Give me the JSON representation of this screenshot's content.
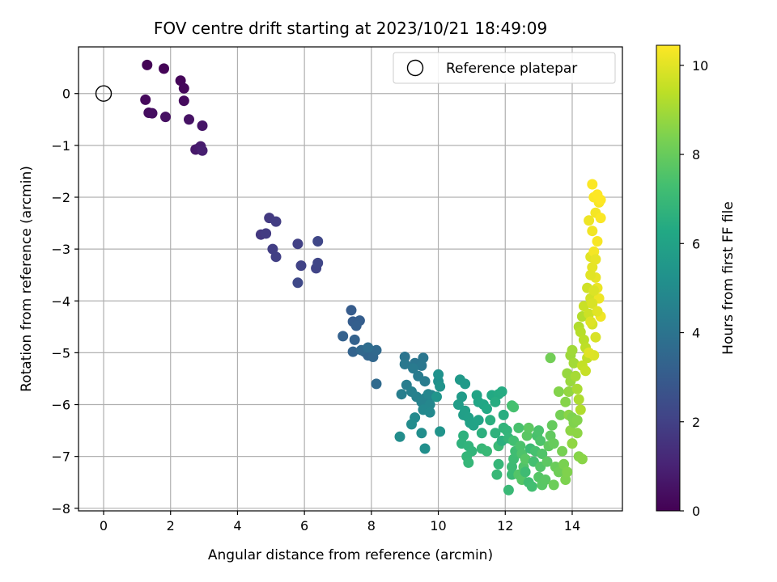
{
  "chart_data": {
    "type": "scatter",
    "title": "FOV centre drift starting at 2023/10/21 18:49:09",
    "xlabel": "Angular distance from reference (arcmin)",
    "ylabel": "Rotation from reference (arcmin)",
    "xlim": [
      -0.75,
      15.5
    ],
    "ylim": [
      -8.05,
      0.9
    ],
    "xticks": [
      0,
      2,
      4,
      6,
      8,
      10,
      12,
      14
    ],
    "yticks": [
      0,
      -1,
      -2,
      -3,
      -4,
      -5,
      -6,
      -7,
      -8
    ],
    "grid": true,
    "legend": {
      "position": "top-right",
      "entries": [
        {
          "label": "Reference platepar",
          "marker": "open-circle"
        }
      ]
    },
    "reference_point": {
      "x": 0,
      "y": 0
    },
    "colorbar": {
      "label": "Hours from first FF file",
      "range": [
        0,
        10.45
      ],
      "ticks": [
        0,
        2,
        4,
        6,
        8,
        10
      ],
      "colormap": "viridis"
    },
    "series": [
      {
        "points": [
          [
            1.3,
            0.55,
            0.05
          ],
          [
            1.8,
            0.48,
            0.1
          ],
          [
            2.3,
            0.25,
            0.15
          ],
          [
            2.4,
            0.1,
            0.2
          ],
          [
            1.25,
            -0.12,
            0.25
          ],
          [
            2.4,
            -0.14,
            0.3
          ],
          [
            1.35,
            -0.37,
            0.35
          ],
          [
            1.45,
            -0.38,
            0.4
          ],
          [
            1.85,
            -0.45,
            0.45
          ],
          [
            2.55,
            -0.5,
            0.5
          ],
          [
            2.95,
            -0.62,
            0.6
          ],
          [
            2.75,
            -1.08,
            0.7
          ],
          [
            2.85,
            -1.05,
            0.75
          ],
          [
            2.9,
            -1.02,
            0.8
          ],
          [
            2.95,
            -1.1,
            0.9
          ],
          [
            4.7,
            -2.72,
            1.7
          ],
          [
            4.95,
            -2.4,
            1.75
          ],
          [
            4.85,
            -2.7,
            1.8
          ],
          [
            5.15,
            -2.47,
            1.85
          ],
          [
            5.05,
            -3.0,
            1.9
          ],
          [
            5.15,
            -3.15,
            1.95
          ],
          [
            5.8,
            -2.9,
            2.0
          ],
          [
            5.9,
            -3.32,
            2.05
          ],
          [
            6.35,
            -3.37,
            2.1
          ],
          [
            6.4,
            -3.27,
            2.15
          ],
          [
            6.4,
            -2.85,
            2.2
          ],
          [
            5.8,
            -3.65,
            2.3
          ],
          [
            7.4,
            -4.18,
            3.0
          ],
          [
            7.45,
            -4.4,
            3.05
          ],
          [
            7.65,
            -4.38,
            3.1
          ],
          [
            7.55,
            -4.48,
            3.15
          ],
          [
            7.15,
            -4.68,
            3.2
          ],
          [
            7.5,
            -4.75,
            3.25
          ],
          [
            7.45,
            -4.98,
            3.3
          ],
          [
            7.8,
            -4.98,
            3.35
          ],
          [
            7.9,
            -5.05,
            3.4
          ],
          [
            8.05,
            -5.08,
            3.45
          ],
          [
            7.7,
            -4.95,
            3.5
          ],
          [
            8.15,
            -4.95,
            3.55
          ],
          [
            8.15,
            -5.6,
            3.6
          ],
          [
            7.9,
            -4.9,
            3.7
          ],
          [
            9.0,
            -5.08,
            4.0
          ],
          [
            9.3,
            -5.2,
            4.05
          ],
          [
            9.55,
            -5.1,
            4.1
          ],
          [
            9.5,
            -5.25,
            4.15
          ],
          [
            9.0,
            -5.22,
            4.2
          ],
          [
            9.25,
            -5.3,
            4.25
          ],
          [
            9.4,
            -5.45,
            4.3
          ],
          [
            9.6,
            -5.55,
            4.35
          ],
          [
            9.05,
            -5.62,
            4.4
          ],
          [
            8.9,
            -5.8,
            4.45
          ],
          [
            9.2,
            -5.75,
            4.5
          ],
          [
            9.35,
            -5.85,
            4.55
          ],
          [
            9.6,
            -5.88,
            4.6
          ],
          [
            9.5,
            -5.95,
            4.65
          ],
          [
            9.8,
            -5.82,
            4.7
          ],
          [
            9.7,
            -5.8,
            4.75
          ],
          [
            9.75,
            -6.0,
            4.8
          ],
          [
            9.55,
            -6.1,
            4.85
          ],
          [
            9.75,
            -6.15,
            4.9
          ],
          [
            9.3,
            -6.25,
            4.95
          ],
          [
            9.2,
            -6.38,
            5.0
          ],
          [
            8.85,
            -6.62,
            5.05
          ],
          [
            9.5,
            -6.55,
            5.1
          ],
          [
            9.6,
            -6.85,
            5.15
          ],
          [
            10.0,
            -5.55,
            5.2
          ],
          [
            10.0,
            -5.42,
            5.25
          ],
          [
            10.05,
            -5.65,
            5.3
          ],
          [
            10.05,
            -6.52,
            5.35
          ],
          [
            9.95,
            -5.85,
            5.4
          ],
          [
            10.65,
            -5.52,
            5.6
          ],
          [
            10.8,
            -5.6,
            5.65
          ],
          [
            10.7,
            -5.85,
            5.7
          ],
          [
            10.6,
            -6.0,
            5.75
          ],
          [
            10.75,
            -6.2,
            5.8
          ],
          [
            10.8,
            -6.12,
            5.85
          ],
          [
            10.9,
            -6.25,
            5.9
          ],
          [
            10.95,
            -6.35,
            5.95
          ],
          [
            11.05,
            -6.4,
            6.0
          ],
          [
            11.2,
            -6.3,
            6.05
          ],
          [
            11.15,
            -5.82,
            6.1
          ],
          [
            11.2,
            -5.95,
            6.15
          ],
          [
            11.35,
            -6.0,
            6.2
          ],
          [
            11.45,
            -6.08,
            6.25
          ],
          [
            11.6,
            -5.82,
            6.3
          ],
          [
            11.8,
            -5.8,
            6.35
          ],
          [
            11.9,
            -5.75,
            6.4
          ],
          [
            11.7,
            -5.95,
            6.45
          ],
          [
            11.95,
            -6.2,
            6.5
          ],
          [
            11.55,
            -6.3,
            6.55
          ],
          [
            11.3,
            -6.55,
            6.6
          ],
          [
            10.75,
            -6.6,
            6.65
          ],
          [
            10.7,
            -6.75,
            6.7
          ],
          [
            10.9,
            -6.8,
            6.75
          ],
          [
            11.0,
            -6.9,
            6.8
          ],
          [
            10.85,
            -7.0,
            6.85
          ],
          [
            10.9,
            -7.12,
            6.9
          ],
          [
            11.3,
            -6.85,
            6.95
          ],
          [
            11.45,
            -6.9,
            7.0
          ],
          [
            11.8,
            -6.8,
            7.05
          ],
          [
            11.9,
            -6.7,
            6.6
          ],
          [
            11.7,
            -6.55,
            6.7
          ],
          [
            11.95,
            -6.45,
            6.75
          ],
          [
            12.05,
            -6.5,
            6.8
          ],
          [
            12.1,
            -6.65,
            6.85
          ],
          [
            11.8,
            -7.15,
            6.9
          ],
          [
            11.75,
            -7.35,
            6.95
          ],
          [
            12.1,
            -7.65,
            7.0
          ],
          [
            12.2,
            -7.35,
            7.05
          ],
          [
            12.2,
            -7.2,
            7.1
          ],
          [
            12.25,
            -7.05,
            7.15
          ],
          [
            12.3,
            -6.9,
            7.2
          ],
          [
            12.25,
            -6.7,
            7.25
          ],
          [
            12.2,
            -6.02,
            7.3
          ],
          [
            12.25,
            -6.05,
            7.35
          ],
          [
            12.4,
            -6.45,
            7.4
          ],
          [
            12.45,
            -6.8,
            7.45
          ],
          [
            12.5,
            -6.95,
            7.5
          ],
          [
            12.55,
            -7.2,
            7.55
          ],
          [
            12.4,
            -7.35,
            7.6
          ],
          [
            12.5,
            -7.45,
            7.65
          ],
          [
            12.6,
            -7.05,
            7.7
          ],
          [
            12.65,
            -6.6,
            7.75
          ],
          [
            12.7,
            -6.45,
            7.8
          ],
          [
            12.75,
            -6.85,
            7.1
          ],
          [
            12.6,
            -7.3,
            7.15
          ],
          [
            12.7,
            -7.5,
            7.2
          ],
          [
            12.8,
            -7.58,
            7.25
          ],
          [
            12.85,
            -7.1,
            7.3
          ],
          [
            12.9,
            -6.9,
            7.35
          ],
          [
            12.95,
            -6.6,
            7.4
          ],
          [
            13.0,
            -6.5,
            7.45
          ],
          [
            13.05,
            -6.7,
            7.5
          ],
          [
            13.1,
            -6.95,
            7.55
          ],
          [
            13.05,
            -7.2,
            7.6
          ],
          [
            13.0,
            -7.4,
            7.65
          ],
          [
            13.1,
            -7.55,
            7.7
          ],
          [
            13.2,
            -7.45,
            7.75
          ],
          [
            13.25,
            -7.1,
            7.8
          ],
          [
            13.3,
            -6.8,
            7.85
          ],
          [
            13.35,
            -6.6,
            7.9
          ],
          [
            13.4,
            -6.4,
            7.95
          ],
          [
            13.45,
            -6.75,
            8.0
          ],
          [
            13.5,
            -7.2,
            8.05
          ],
          [
            13.45,
            -7.55,
            8.1
          ],
          [
            13.6,
            -7.3,
            8.15
          ],
          [
            13.35,
            -5.1,
            8.2
          ],
          [
            13.65,
            -6.2,
            8.25
          ],
          [
            13.7,
            -6.9,
            8.3
          ],
          [
            13.75,
            -7.15,
            8.35
          ],
          [
            13.8,
            -7.45,
            8.4
          ],
          [
            13.85,
            -7.3,
            8.45
          ],
          [
            13.6,
            -5.75,
            8.5
          ],
          [
            13.8,
            -5.95,
            8.55
          ],
          [
            13.9,
            -6.2,
            8.6
          ],
          [
            13.95,
            -6.5,
            8.65
          ],
          [
            14.0,
            -6.75,
            8.7
          ],
          [
            13.9,
            -5.75,
            8.75
          ],
          [
            13.85,
            -5.4,
            8.8
          ],
          [
            13.95,
            -5.55,
            8.85
          ],
          [
            13.95,
            -5.05,
            8.9
          ],
          [
            14.0,
            -4.95,
            8.95
          ],
          [
            14.05,
            -5.2,
            9.0
          ],
          [
            14.1,
            -5.45,
            9.05
          ],
          [
            14.15,
            -5.7,
            9.1
          ],
          [
            14.2,
            -5.9,
            9.15
          ],
          [
            14.25,
            -6.1,
            9.2
          ],
          [
            14.0,
            -6.25,
            8.4
          ],
          [
            14.05,
            -6.35,
            8.45
          ],
          [
            14.15,
            -6.3,
            8.5
          ],
          [
            14.2,
            -7.0,
            8.55
          ],
          [
            14.3,
            -7.05,
            8.6
          ],
          [
            14.15,
            -6.55,
            8.65
          ],
          [
            14.2,
            -4.5,
            9.2
          ],
          [
            14.3,
            -4.3,
            9.25
          ],
          [
            14.25,
            -4.6,
            9.3
          ],
          [
            14.35,
            -4.75,
            9.35
          ],
          [
            14.4,
            -4.9,
            9.4
          ],
          [
            14.45,
            -5.1,
            9.45
          ],
          [
            14.3,
            -5.25,
            9.5
          ],
          [
            14.4,
            -5.35,
            9.55
          ],
          [
            14.35,
            -4.1,
            9.6
          ],
          [
            14.5,
            -4.25,
            9.65
          ],
          [
            14.45,
            -3.75,
            9.7
          ],
          [
            14.55,
            -3.95,
            9.75
          ],
          [
            14.6,
            -4.45,
            9.8
          ],
          [
            14.7,
            -4.7,
            9.85
          ],
          [
            14.65,
            -5.05,
            9.9
          ],
          [
            14.5,
            -5.0,
            9.95
          ],
          [
            14.55,
            -3.15,
            10.0
          ],
          [
            14.6,
            -3.35,
            10.05
          ],
          [
            14.7,
            -3.55,
            10.1
          ],
          [
            14.75,
            -3.75,
            10.15
          ],
          [
            14.8,
            -3.95,
            10.2
          ],
          [
            14.85,
            -4.3,
            10.25
          ],
          [
            14.65,
            -3.05,
            10.3
          ],
          [
            14.75,
            -2.85,
            10.35
          ],
          [
            14.5,
            -2.45,
            10.2
          ],
          [
            14.6,
            -2.65,
            10.25
          ],
          [
            14.7,
            -2.3,
            10.3
          ],
          [
            14.8,
            -2.1,
            10.35
          ],
          [
            14.85,
            -2.4,
            10.4
          ],
          [
            14.65,
            -2.0,
            10.4
          ],
          [
            14.6,
            -1.75,
            10.42
          ],
          [
            14.75,
            -1.95,
            10.45
          ],
          [
            14.85,
            -2.05,
            10.45
          ],
          [
            14.7,
            -3.2,
            10.1
          ],
          [
            14.55,
            -3.5,
            10.0
          ],
          [
            14.65,
            -3.8,
            9.9
          ],
          [
            14.6,
            -4.05,
            9.85
          ],
          [
            14.75,
            -4.2,
            10.0
          ],
          [
            14.55,
            -4.4,
            9.95
          ]
        ]
      }
    ]
  }
}
